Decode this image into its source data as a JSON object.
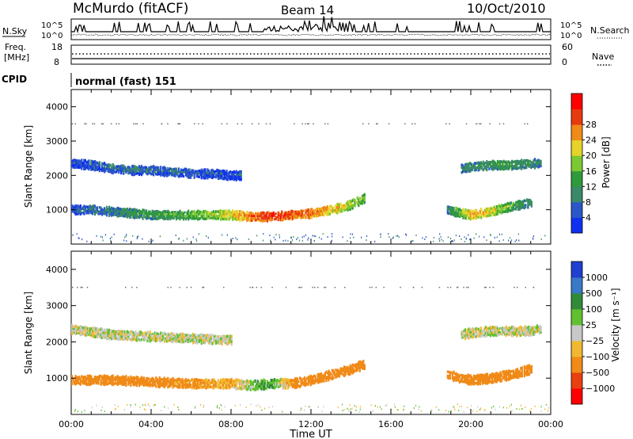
{
  "header": {
    "station": "McMurdo (fitACF)",
    "beam": "Beam 14",
    "date": "10/Oct/2010"
  },
  "top_panel": {
    "left_label": "N.Sky",
    "left_ticks": [
      "10^5",
      "10^0"
    ],
    "right_ticks": [
      "10^5",
      "10^0"
    ],
    "right_label": "N.Search"
  },
  "freq_panel": {
    "label_line1": "Freq.",
    "label_line2": "[MHz]",
    "left_ticks": [
      "18",
      "8"
    ],
    "right_ticks": [
      "60",
      "0"
    ],
    "right_label": "Nave"
  },
  "cpid": {
    "label": "CPID",
    "value": "normal (fast) 151"
  },
  "chart_data": [
    {
      "type": "heatmap",
      "name": "power",
      "ylabel": "Slant Range [km]",
      "xlabel": "",
      "y_ticks": [
        "1000",
        "2000",
        "3000",
        "4000"
      ],
      "colorbar": {
        "label": "Power [dB]",
        "ticks": [
          "4",
          "8",
          "12",
          "16",
          "20",
          "24",
          "28"
        ],
        "colors": [
          "#1030f0",
          "#2a56c8",
          "#3a8a6a",
          "#2e9a3c",
          "#7cc832",
          "#e6d22a",
          "#f08a18",
          "#e83a10",
          "#ff0000"
        ]
      },
      "bands": [
        {
          "hours": [
            0,
            1,
            2,
            3,
            4,
            5,
            6,
            7,
            8,
            8.5
          ],
          "range_km": [
            2350,
            2300,
            2200,
            2150,
            2150,
            2100,
            2050,
            2050,
            2000,
            2000
          ],
          "value_db": [
            5,
            6,
            7,
            8,
            7,
            7,
            6,
            6,
            5,
            5
          ]
        },
        {
          "hours": [
            0,
            1,
            2,
            3,
            4,
            5,
            6,
            7,
            8,
            9,
            10,
            11,
            12,
            13,
            14,
            14.7
          ],
          "range_km": [
            1000,
            1000,
            950,
            900,
            850,
            850,
            850,
            850,
            850,
            800,
            800,
            850,
            900,
            1000,
            1150,
            1350
          ],
          "value_db": [
            6,
            8,
            9,
            11,
            12,
            13,
            15,
            17,
            20,
            26,
            28,
            27,
            25,
            22,
            18,
            14
          ]
        },
        {
          "hours": [
            18.8,
            19.5,
            20,
            21,
            22,
            23
          ],
          "range_km": [
            1000,
            900,
            850,
            950,
            1100,
            1200
          ],
          "value_db": [
            10,
            16,
            22,
            20,
            14,
            10
          ]
        },
        {
          "hours": [
            19.5,
            20,
            21,
            22,
            23,
            23.5
          ],
          "range_km": [
            2200,
            2250,
            2300,
            2300,
            2350,
            2350
          ],
          "value_db": [
            8,
            10,
            12,
            12,
            10,
            8
          ]
        }
      ]
    },
    {
      "type": "heatmap",
      "name": "velocity",
      "ylabel": "Slant Range [km]",
      "xlabel": "Time UT",
      "x_ticks": [
        "00:00",
        "04:00",
        "08:00",
        "12:00",
        "16:00",
        "20:00",
        "00:00"
      ],
      "y_ticks": [
        "1000",
        "2000",
        "3000",
        "4000"
      ],
      "colorbar": {
        "label": "Velocity [m s⁻¹]",
        "ticks": [
          "1000",
          "500",
          "100",
          "25",
          "−25",
          "−100",
          "−500",
          "−1000"
        ],
        "colors": [
          "#1f3fd0",
          "#3a78c8",
          "#2f8a3a",
          "#62c030",
          "#c8c8c8",
          "#f0b830",
          "#f08a18",
          "#e84010",
          "#ff0000"
        ]
      },
      "bands": [
        {
          "hours": [
            0,
            2,
            4,
            6,
            8
          ],
          "range_km": [
            2350,
            2200,
            2150,
            2100,
            2050
          ],
          "value_ms": [
            0,
            0,
            0,
            0,
            0
          ]
        },
        {
          "hours": [
            0,
            2,
            4,
            6,
            8,
            9,
            10,
            11,
            12,
            13,
            14,
            14.7
          ],
          "range_km": [
            950,
            950,
            900,
            850,
            850,
            800,
            850,
            850,
            950,
            1100,
            1250,
            1400
          ],
          "value_ms": [
            -150,
            -200,
            -180,
            -120,
            -80,
            40,
            90,
            -120,
            -300,
            -400,
            -450,
            -400
          ]
        },
        {
          "hours": [
            18.8,
            19.5,
            20,
            21,
            22,
            23
          ],
          "range_km": [
            1100,
            1000,
            950,
            1000,
            1100,
            1250
          ],
          "value_ms": [
            -300,
            -350,
            -400,
            -350,
            -300,
            -250
          ]
        },
        {
          "hours": [
            19.5,
            20,
            21,
            22,
            23,
            23.5
          ],
          "range_km": [
            2200,
            2250,
            2300,
            2300,
            2300,
            2350
          ],
          "value_ms": [
            0,
            0,
            0,
            0,
            0,
            0
          ]
        }
      ]
    }
  ]
}
